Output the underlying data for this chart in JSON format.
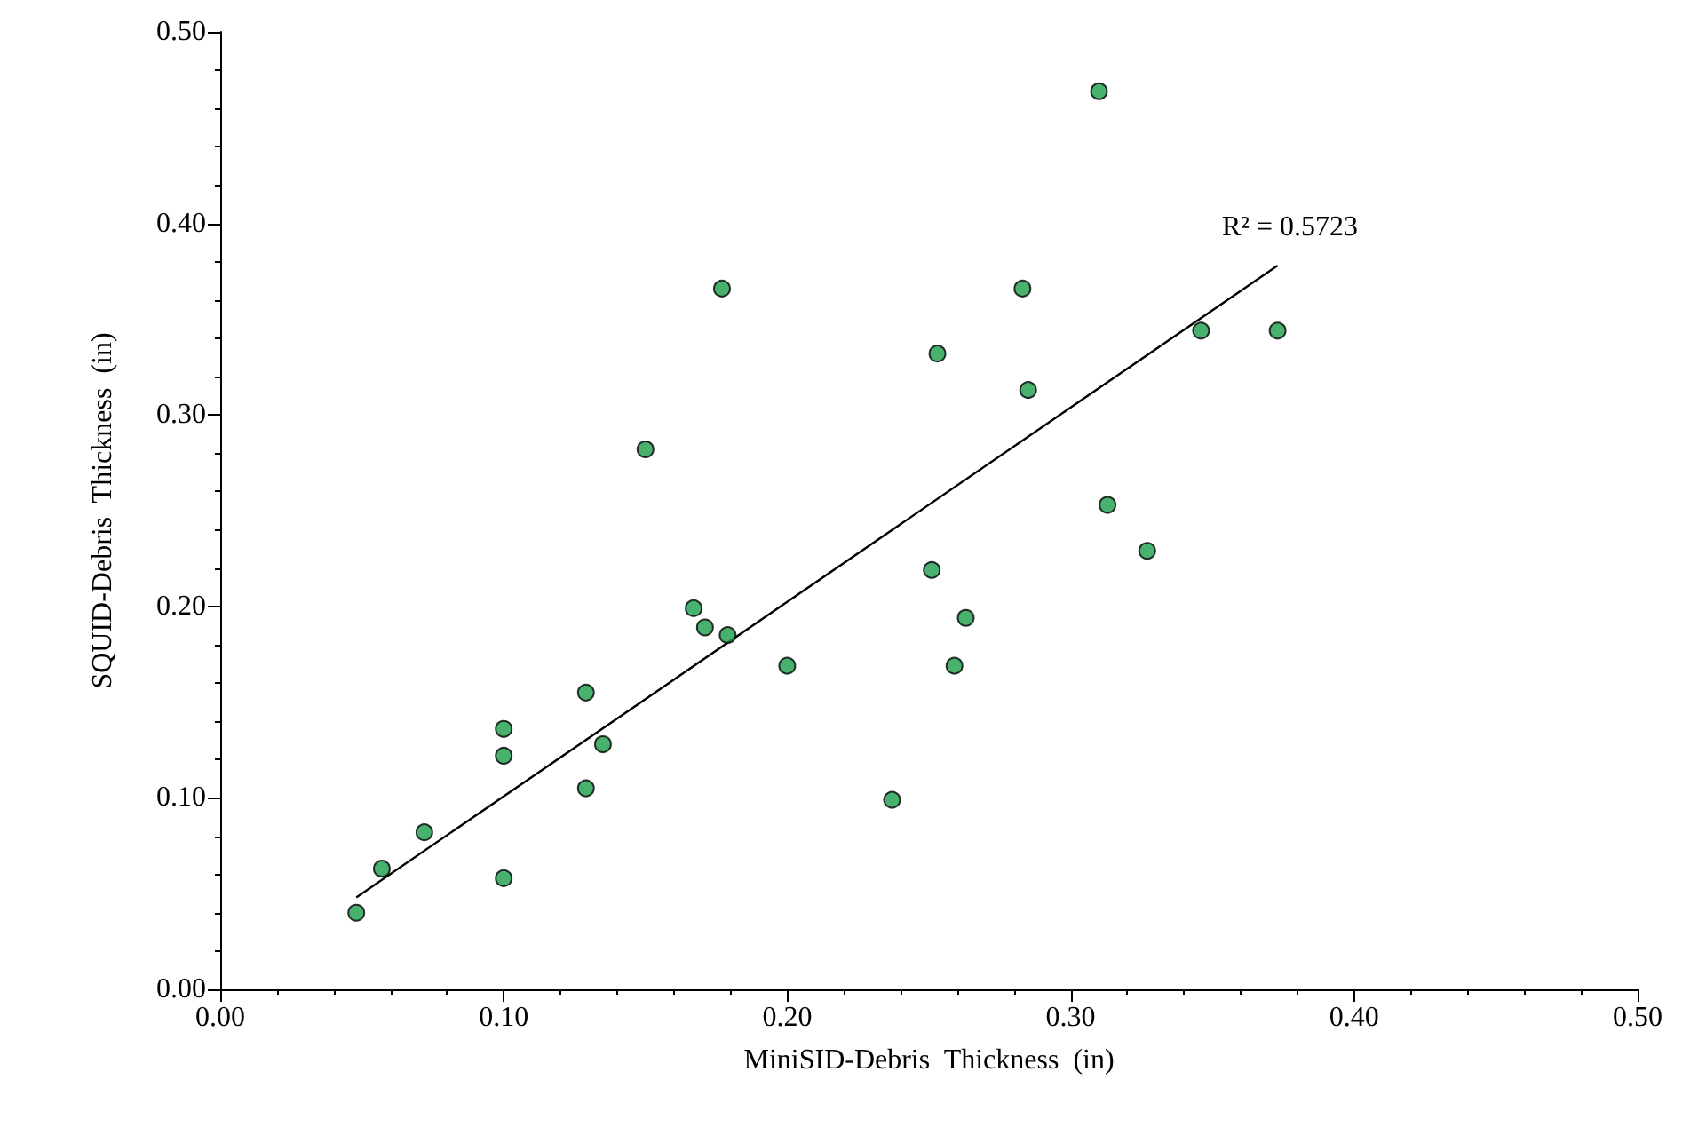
{
  "chart_data": {
    "type": "scatter",
    "xlabel": "MiniSID-Debris  Thickness  (in)",
    "ylabel": "SQUID-Debris  Thickness  (in)",
    "xlim": [
      0,
      0.5
    ],
    "ylim": [
      0,
      0.5
    ],
    "xticks": [
      {
        "value": 0,
        "label": "0.00"
      },
      {
        "value": 0.1,
        "label": "0.10"
      },
      {
        "value": 0.2,
        "label": "0.20"
      },
      {
        "value": 0.3,
        "label": "0.30"
      },
      {
        "value": 0.4,
        "label": "0.40"
      },
      {
        "value": 0.5,
        "label": "0.50"
      }
    ],
    "yticks": [
      {
        "value": 0,
        "label": "0.00"
      },
      {
        "value": 0.1,
        "label": "0.10"
      },
      {
        "value": 0.2,
        "label": "0.20"
      },
      {
        "value": 0.3,
        "label": "0.30"
      },
      {
        "value": 0.4,
        "label": "0.40"
      },
      {
        "value": 0.5,
        "label": "0.50"
      }
    ],
    "grid": false,
    "annotations": [
      "R² = 0.5723"
    ],
    "series": [
      {
        "marker": "circle",
        "color": "#1a9e4a",
        "x": [
          0.048,
          0.057,
          0.072,
          0.1,
          0.1,
          0.1,
          0.129,
          0.129,
          0.135,
          0.15,
          0.167,
          0.171,
          0.177,
          0.179,
          0.2,
          0.237,
          0.251,
          0.253,
          0.259,
          0.263,
          0.283,
          0.285,
          0.31,
          0.313,
          0.327,
          0.346,
          0.373
        ],
        "values": [
          0.04,
          0.063,
          0.082,
          0.136,
          0.122,
          0.058,
          0.155,
          0.105,
          0.128,
          0.282,
          0.199,
          0.189,
          0.366,
          0.185,
          0.169,
          0.099,
          0.219,
          0.332,
          0.169,
          0.194,
          0.366,
          0.313,
          0.469,
          0.253,
          0.229,
          0.344,
          0.344
        ]
      },
      {
        "type": "line",
        "marker": "none",
        "color": "#000000",
        "x": [
          0.048,
          0.373
        ],
        "values": [
          0.048,
          0.378
        ]
      }
    ]
  }
}
